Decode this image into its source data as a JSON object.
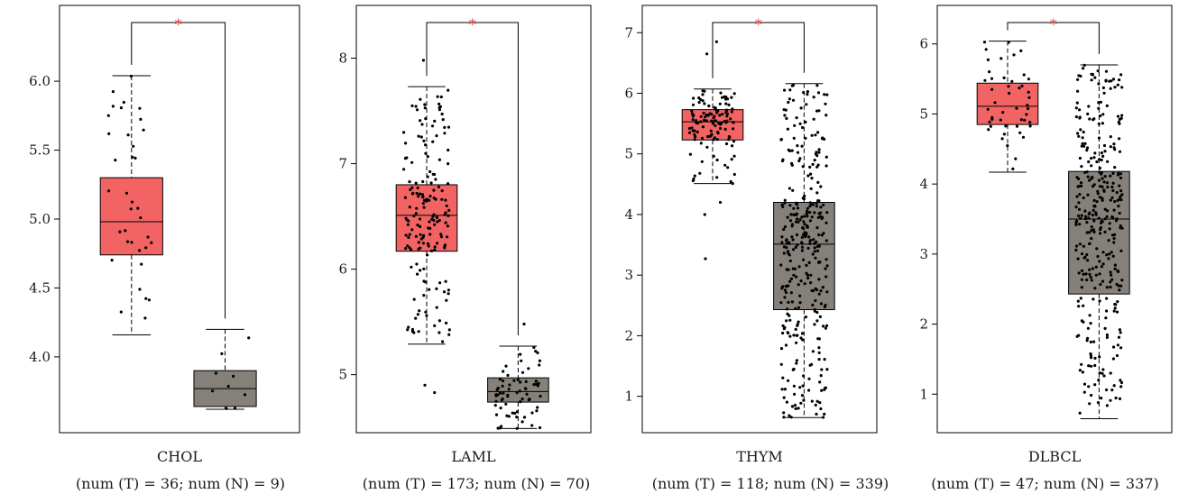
{
  "colors": {
    "tumor": "#f26464",
    "normal": "#85807a",
    "significance": "#e03a3a",
    "point": "#000000"
  },
  "chart_data": [
    {
      "type": "box",
      "category": "CHOL",
      "caption": "(num (T) = 36; num (N) = 9)",
      "significance": "*",
      "yticks": [
        4.0,
        4.5,
        5.0,
        5.5,
        6.0
      ],
      "ylim": [
        3.45,
        6.55
      ],
      "groups": [
        {
          "name": "T",
          "n": 36,
          "min": 4.16,
          "q1": 4.74,
          "median": 4.98,
          "q3": 5.3,
          "max": 6.04,
          "outliers": []
        },
        {
          "name": "N",
          "n": 9,
          "min": 3.62,
          "q1": 3.64,
          "median": 3.77,
          "q3": 3.9,
          "max": 4.2,
          "outliers": []
        }
      ]
    },
    {
      "type": "box",
      "category": "LAML",
      "caption": "(num (T) = 173; num (N) = 70)",
      "significance": "*",
      "yticks": [
        5,
        6,
        7,
        8
      ],
      "ylim": [
        4.45,
        8.5
      ],
      "groups": [
        {
          "name": "T",
          "n": 173,
          "min": 5.29,
          "q1": 6.17,
          "median": 6.51,
          "q3": 6.8,
          "max": 7.73,
          "outliers": [
            7.98,
            4.9,
            4.83
          ]
        },
        {
          "name": "N",
          "n": 70,
          "min": 4.49,
          "q1": 4.74,
          "median": 4.84,
          "q3": 4.97,
          "max": 5.27,
          "outliers": [
            5.48
          ]
        }
      ]
    },
    {
      "type": "box",
      "category": "THYM",
      "caption": "(num (T) = 118; num (N) = 339)",
      "significance": "*",
      "yticks": [
        1,
        2,
        3,
        4,
        5,
        6,
        7
      ],
      "ylim": [
        0.4,
        7.45
      ],
      "groups": [
        {
          "name": "T",
          "n": 118,
          "min": 4.51,
          "q1": 5.23,
          "median": 5.53,
          "q3": 5.73,
          "max": 6.07,
          "outliers": [
            6.85,
            6.65,
            4.2,
            4.0,
            3.27
          ]
        },
        {
          "name": "N",
          "n": 339,
          "min": 0.65,
          "q1": 2.43,
          "median": 3.51,
          "q3": 4.2,
          "max": 6.16,
          "outliers": []
        }
      ]
    },
    {
      "type": "box",
      "category": "DLBCL",
      "caption": "(num (T) = 47; num (N) = 337)",
      "significance": "*",
      "yticks": [
        1,
        2,
        3,
        4,
        5,
        6
      ],
      "ylim": [
        0.45,
        6.55
      ],
      "groups": [
        {
          "name": "T",
          "n": 47,
          "min": 4.17,
          "q1": 4.85,
          "median": 5.11,
          "q3": 5.44,
          "max": 6.04,
          "outliers": []
        },
        {
          "name": "N",
          "n": 337,
          "min": 0.65,
          "q1": 2.43,
          "median": 3.5,
          "q3": 4.18,
          "max": 5.7,
          "outliers": []
        }
      ]
    }
  ]
}
